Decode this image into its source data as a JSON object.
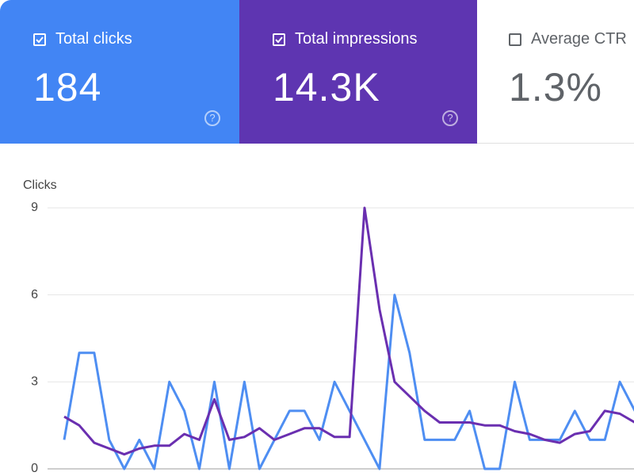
{
  "cards": [
    {
      "label": "Total clicks",
      "value": "184"
    },
    {
      "label": "Total impressions",
      "value": "14.3K"
    },
    {
      "label": "Average CTR",
      "value": "1.3%"
    }
  ],
  "chart_data": {
    "type": "line",
    "ylabel": "Clicks",
    "ylim": [
      0,
      9
    ],
    "yticks": [
      0,
      3,
      6,
      9
    ],
    "grid": true,
    "series": [
      {
        "name": "Total clicks",
        "color": "#4e8ef2",
        "values": [
          1,
          4,
          4,
          1,
          0,
          1,
          0,
          3,
          2,
          0,
          3,
          0,
          3,
          0,
          1,
          2,
          2,
          1,
          3,
          2,
          1,
          0,
          6,
          4,
          1,
          1,
          1,
          2,
          0,
          0,
          3,
          1,
          1,
          1,
          2,
          1,
          1,
          3,
          2
        ]
      },
      {
        "name": "Total impressions",
        "color": "#6a2fb0",
        "values": [
          1.8,
          1.5,
          0.9,
          0.7,
          0.5,
          0.7,
          0.8,
          0.8,
          1.2,
          1.0,
          2.4,
          1.0,
          1.1,
          1.4,
          1.0,
          1.2,
          1.4,
          1.4,
          1.1,
          1.1,
          9.0,
          5.5,
          3.0,
          2.5,
          2.0,
          1.6,
          1.6,
          1.6,
          1.5,
          1.5,
          1.3,
          1.2,
          1.0,
          0.9,
          1.2,
          1.3,
          2.0,
          1.9,
          1.6
        ]
      }
    ]
  }
}
